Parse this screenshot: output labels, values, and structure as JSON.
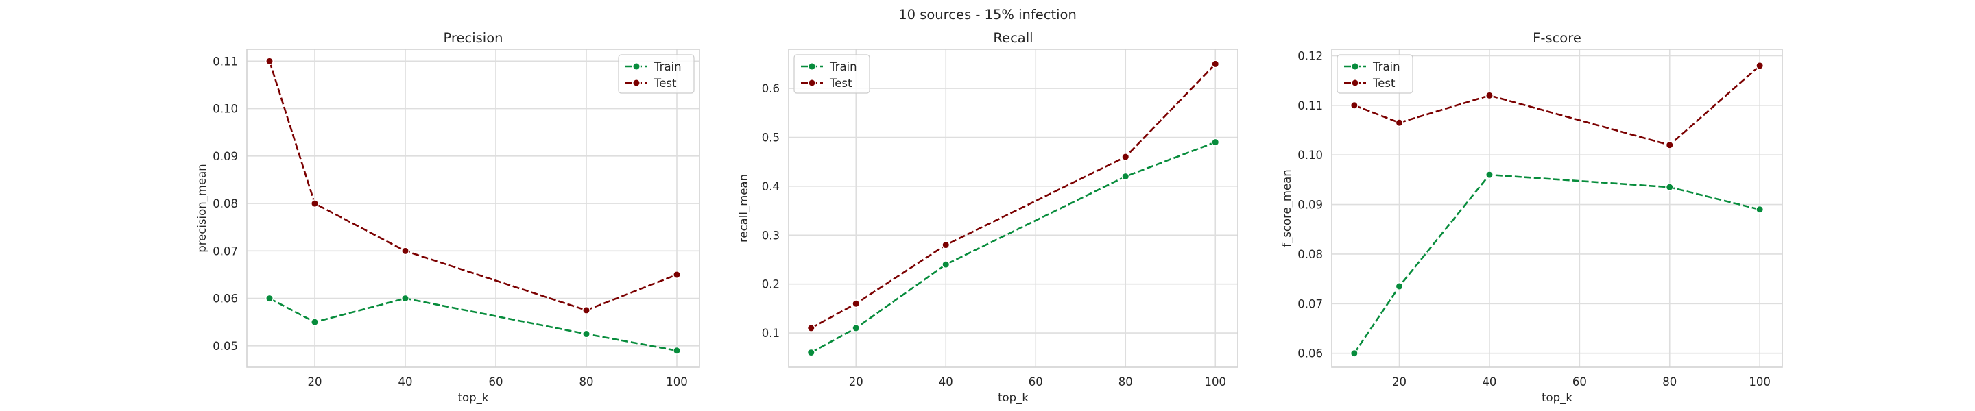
{
  "figure": {
    "suptitle": "10 sources - 15% infection"
  },
  "chart_data": [
    {
      "type": "line",
      "title": "Precision",
      "xlabel": "top_k",
      "ylabel": "precision_mean",
      "x": [
        10,
        20,
        40,
        80,
        100
      ],
      "xlim": [
        5,
        105
      ],
      "ylim": [
        0.0455,
        0.1125
      ],
      "xticks": [
        20,
        40,
        60,
        80,
        100
      ],
      "yticks": [
        0.05,
        0.06,
        0.07,
        0.08,
        0.09,
        0.1,
        0.11
      ],
      "ytick_labels": [
        "0.05",
        "0.06",
        "0.07",
        "0.08",
        "0.09",
        "0.10",
        "0.11"
      ],
      "grid": true,
      "legend": "top-right",
      "series": [
        {
          "name": "Train",
          "color": "#078c3c",
          "values": [
            0.06,
            0.055,
            0.06,
            0.0525,
            0.049
          ]
        },
        {
          "name": "Test",
          "color": "#7b0000",
          "values": [
            0.11,
            0.08,
            0.07,
            0.0575,
            0.065
          ]
        }
      ]
    },
    {
      "type": "line",
      "title": "Recall",
      "xlabel": "top_k",
      "ylabel": "recall_mean",
      "x": [
        10,
        20,
        40,
        80,
        100
      ],
      "xlim": [
        5,
        105
      ],
      "ylim": [
        0.03,
        0.68
      ],
      "xticks": [
        20,
        40,
        60,
        80,
        100
      ],
      "yticks": [
        0.1,
        0.2,
        0.3,
        0.4,
        0.5,
        0.6
      ],
      "ytick_labels": [
        "0.1",
        "0.2",
        "0.3",
        "0.4",
        "0.5",
        "0.6"
      ],
      "grid": true,
      "legend": "top-left",
      "series": [
        {
          "name": "Train",
          "color": "#078c3c",
          "values": [
            0.06,
            0.11,
            0.24,
            0.42,
            0.49
          ]
        },
        {
          "name": "Test",
          "color": "#7b0000",
          "values": [
            0.11,
            0.16,
            0.28,
            0.46,
            0.65
          ]
        }
      ]
    },
    {
      "type": "line",
      "title": "F-score",
      "xlabel": "top_k",
      "ylabel": "f_score_mean",
      "x": [
        10,
        20,
        40,
        80,
        100
      ],
      "xlim": [
        5,
        105
      ],
      "ylim": [
        0.0572,
        0.1213
      ],
      "xticks": [
        20,
        40,
        60,
        80,
        100
      ],
      "yticks": [
        0.06,
        0.07,
        0.08,
        0.09,
        0.1,
        0.11,
        0.12
      ],
      "ytick_labels": [
        "0.06",
        "0.07",
        "0.08",
        "0.09",
        "0.10",
        "0.11",
        "0.12"
      ],
      "grid": true,
      "legend": "top-left",
      "series": [
        {
          "name": "Train",
          "color": "#078c3c",
          "values": [
            0.06,
            0.0735,
            0.096,
            0.0935,
            0.089
          ]
        },
        {
          "name": "Test",
          "color": "#7b0000",
          "values": [
            0.11,
            0.1065,
            0.112,
            0.102,
            0.118
          ]
        }
      ]
    }
  ]
}
